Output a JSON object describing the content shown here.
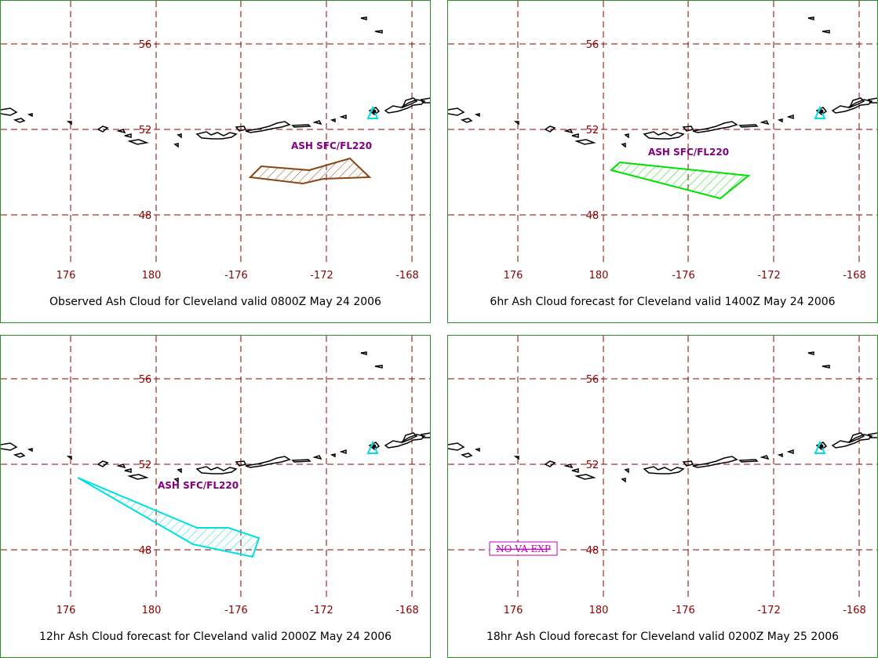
{
  "colors": {
    "grid": "#8b0000",
    "coast": "#000000",
    "volcano": "#00e0e0",
    "panel_border": "#2e8b2e",
    "ash_label": "#800080",
    "nova": "#c000c0"
  },
  "map": {
    "lat_ticks": [
      "56",
      "52",
      "48"
    ],
    "lon_ticks": [
      "176",
      "180",
      "-176",
      "-172",
      "-168"
    ],
    "volcano_icon": "volcano-triangle-icon"
  },
  "panels": [
    {
      "caption": "Observed Ash Cloud for Cleveland valid 0800Z May 24 2006",
      "ash_label": "ASH SFC/FL220",
      "cloud_color": "#8b4513",
      "nova_label": ""
    },
    {
      "caption": "6hr Ash Cloud forecast for Cleveland valid 1400Z May 24 2006",
      "ash_label": "ASH SFC/FL220",
      "cloud_color": "#00e000",
      "nova_label": ""
    },
    {
      "caption": "12hr Ash Cloud forecast for Cleveland valid 2000Z May 24 2006",
      "ash_label": "ASH SFC/FL220",
      "cloud_color": "#00e0e0",
      "nova_label": ""
    },
    {
      "caption": "18hr Ash Cloud forecast for Cleveland valid 0200Z May 25 2006",
      "ash_label": "",
      "cloud_color": "",
      "nova_label": "NO VA EXP"
    }
  ]
}
